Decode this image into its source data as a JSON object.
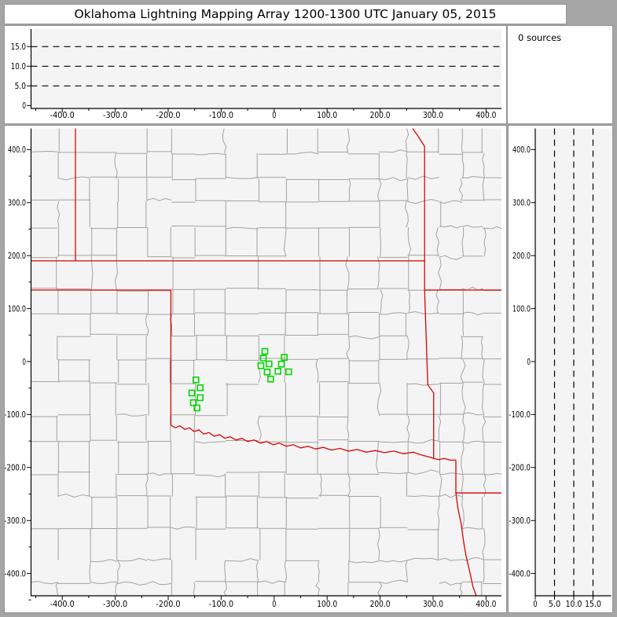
{
  "title": "Oklahoma Lightning Mapping Array   1200-1300 UTC  January 05, 2015",
  "sources_panel": {
    "label": "0 sources"
  },
  "colors": {
    "frame": "#a5a5a5",
    "panel": "#ffffff",
    "plot_bg": "#f4f4f4",
    "county_line": "#a2a2a2",
    "state_line": "#dd0000",
    "station": "#00d800",
    "axis": "#000000",
    "dashed": "#000000"
  },
  "chart_data": [
    {
      "name": "altitude-vs-east-west",
      "type": "scatter",
      "title": "",
      "xlabel": "",
      "ylabel": "",
      "xlim": [
        -459,
        429
      ],
      "ylim": [
        -0.7,
        19.6
      ],
      "x_ticks_km": [
        -400,
        -300,
        -200,
        -100,
        0,
        100,
        200,
        300,
        400
      ],
      "x_tick_labels": [
        "-400.0",
        "-300.0",
        "-200.0",
        "-100.0",
        "0",
        "100.0",
        "200.0",
        "300.0",
        "400.0"
      ],
      "y_ticks_km": [
        0,
        5,
        10,
        15
      ],
      "y_tick_labels": [
        "0",
        "5.0",
        "10.0",
        "15.0"
      ],
      "dashed_lines_alt_km": [
        5,
        10,
        15
      ],
      "points": []
    },
    {
      "name": "plan-view-map",
      "type": "scatter",
      "title": "",
      "xlim": [
        -459,
        429
      ],
      "ylim": [
        -443,
        440
      ],
      "x_ticks_km": [
        -400,
        -300,
        -200,
        -100,
        0,
        100,
        200,
        300,
        400
      ],
      "x_tick_labels": [
        "-400.0",
        "-300.0",
        "-200.0",
        "-100.0",
        "0",
        "100.0",
        "200.0",
        "300.0",
        "400.0"
      ],
      "y_ticks_km": [
        400,
        300,
        200,
        100,
        0,
        -100,
        -200,
        -300,
        -400
      ],
      "y_tick_labels": [
        "400.0",
        "300.0",
        "200.0",
        "100.0",
        "0",
        "-100.0",
        "-200.0",
        "-300.0",
        "-400.0"
      ],
      "stations_km": [
        [
          -147.6,
          -34.6
        ],
        [
          -139.6,
          -49.4
        ],
        [
          -155.5,
          -59.3
        ],
        [
          -139.6,
          -68.2
        ],
        [
          -152.5,
          -77.6
        ],
        [
          -145.5,
          -87.5
        ],
        [
          -17.5,
          19.3
        ],
        [
          -20.5,
          6.4
        ],
        [
          19.1,
          7.9
        ],
        [
          -24.9,
          -7.9
        ],
        [
          -9.6,
          -4.5
        ],
        [
          13.6,
          -4.9
        ],
        [
          -13.1,
          -19.7
        ],
        [
          7.3,
          -18.2
        ],
        [
          27.4,
          -19.3
        ],
        [
          -6.7,
          -33.1
        ]
      ],
      "state_borders_km": [
        [
          [
            -459,
            190
          ],
          [
            284,
            190
          ]
        ],
        [
          [
            -375,
            440
          ],
          [
            -375,
            190
          ]
        ],
        [
          [
            -459,
            135
          ],
          [
            -195,
            135
          ]
        ],
        [
          [
            -195,
            135
          ],
          [
            -195,
            -120
          ]
        ],
        [
          [
            260,
            442
          ],
          [
            272,
            425
          ],
          [
            284,
            406
          ],
          [
            284,
            190
          ]
        ],
        [
          [
            284,
            190
          ],
          [
            284,
            135
          ]
        ],
        [
          [
            284,
            135
          ],
          [
            440,
            135
          ]
        ],
        [
          [
            284,
            135
          ],
          [
            288,
            15
          ],
          [
            290,
            -44
          ],
          [
            301,
            -59
          ],
          [
            301,
            -183
          ]
        ],
        [
          [
            -195,
            -120
          ],
          [
            -186,
            -125
          ],
          [
            -178,
            -121
          ],
          [
            -169,
            -128
          ],
          [
            -160,
            -125
          ],
          [
            -151,
            -132
          ],
          [
            -142,
            -129
          ],
          [
            -133,
            -137
          ],
          [
            -123,
            -134
          ],
          [
            -113,
            -141
          ],
          [
            -103,
            -138
          ],
          [
            -93,
            -145
          ],
          [
            -83,
            -142
          ],
          [
            -72,
            -148
          ],
          [
            -61,
            -145
          ],
          [
            -50,
            -151
          ],
          [
            -38,
            -148
          ],
          [
            -26,
            -154
          ],
          [
            -14,
            -151
          ],
          [
            -2,
            -157
          ],
          [
            10,
            -154
          ],
          [
            23,
            -160
          ],
          [
            36,
            -157
          ],
          [
            50,
            -163
          ],
          [
            64,
            -160
          ],
          [
            78,
            -165
          ],
          [
            93,
            -162
          ],
          [
            108,
            -167
          ],
          [
            124,
            -164
          ],
          [
            140,
            -169
          ],
          [
            157,
            -166
          ],
          [
            174,
            -171
          ],
          [
            191,
            -168
          ],
          [
            208,
            -172
          ],
          [
            226,
            -169
          ],
          [
            244,
            -174
          ],
          [
            262,
            -171
          ],
          [
            280,
            -177
          ],
          [
            292,
            -180
          ],
          [
            301,
            -183
          ],
          [
            311,
            -185
          ],
          [
            321,
            -183
          ],
          [
            332,
            -186
          ],
          [
            343,
            -186
          ]
        ],
        [
          [
            343,
            -186
          ],
          [
            343,
            -248
          ]
        ],
        [
          [
            343,
            -248
          ],
          [
            440,
            -248
          ]
        ],
        [
          [
            343,
            -248
          ],
          [
            347,
            -278
          ],
          [
            353,
            -306
          ],
          [
            357,
            -336
          ],
          [
            362,
            -366
          ],
          [
            369,
            -396
          ],
          [
            375,
            -424
          ],
          [
            382,
            -444
          ]
        ]
      ]
    },
    {
      "name": "altitude-vs-north-south",
      "type": "scatter",
      "title": "",
      "xlim": [
        0,
        19.7
      ],
      "ylim": [
        -443,
        440
      ],
      "x_ticks_km": [
        0,
        5,
        10,
        15
      ],
      "x_tick_labels": [
        "0",
        "5.0",
        "10.0",
        "15.0"
      ],
      "y_ticks_km": [
        400,
        300,
        200,
        100,
        0,
        -100,
        -200,
        -300,
        -400
      ],
      "y_tick_labels": [
        "400.0",
        "300.0",
        "200.0",
        "100.0",
        "0",
        "-100.0",
        "-200.0",
        "-300.0",
        "-400.0"
      ],
      "dashed_lines_alt_km": [
        5,
        10,
        15
      ],
      "points": []
    }
  ]
}
